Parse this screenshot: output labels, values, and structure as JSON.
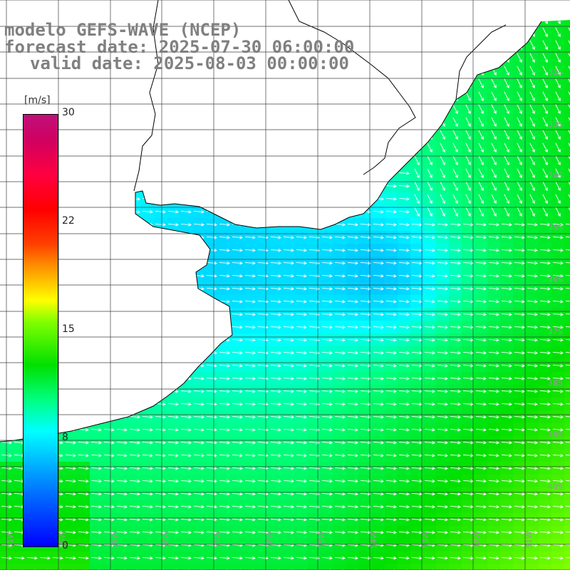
{
  "title": {
    "line1": "modelo GEFS-WAVE (NCEP)",
    "line2": "forecast date: 2025-07-30 06:00:00",
    "line3": "valid date: 2025-08-03 00:00:00"
  },
  "colorbar": {
    "unit": "[m/s]",
    "ticks": [
      "30",
      "22",
      "15",
      "8",
      "0"
    ],
    "min": 0,
    "max": 30
  },
  "grid": {
    "lat_labels": [
      "32S",
      "33S",
      "34S",
      "35S",
      "36S",
      "37S",
      "38S",
      "39S",
      "40S"
    ],
    "lon_labels": [
      "61W",
      "60W",
      "59W",
      "58W",
      "57W",
      "56W",
      "55W",
      "54W",
      "53W",
      "52W",
      "51W"
    ]
  },
  "colors": {
    "title_gray": "#808080",
    "land": "#ffffff",
    "coast": "#000000",
    "grid": "#404040",
    "arrow": "#ffffff"
  }
}
